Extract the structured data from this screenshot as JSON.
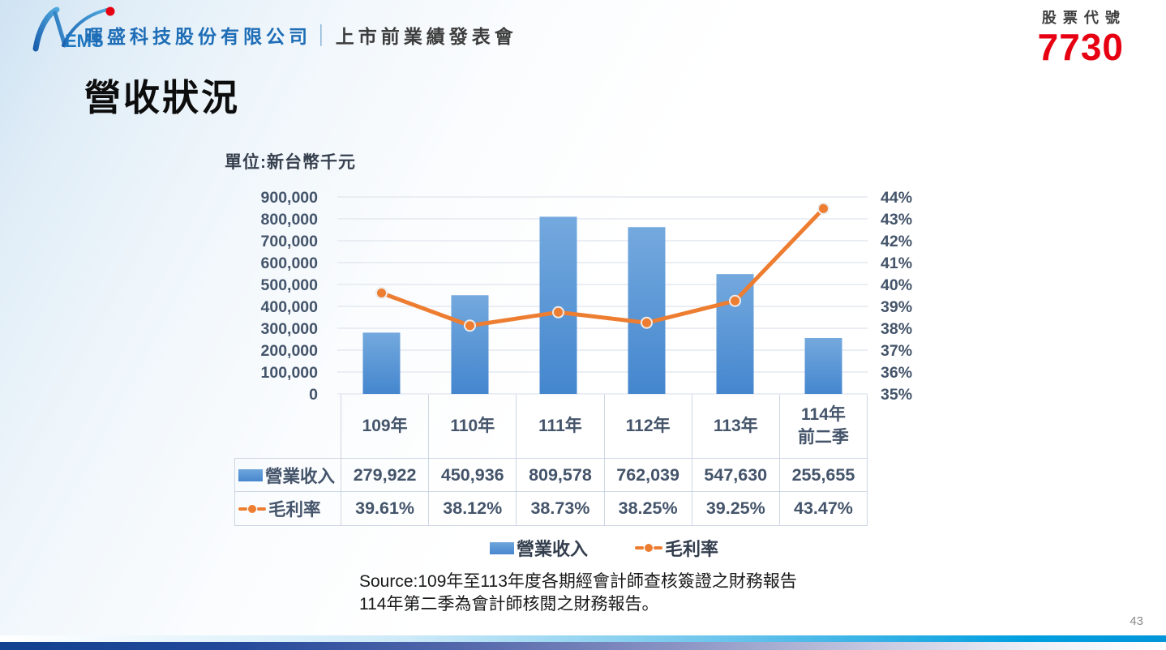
{
  "header": {
    "logo_text": "EMS",
    "company": "暉盛科技股份有限公司",
    "separator": "│",
    "event": "上市前業績發表會",
    "stock_label": "股票代號",
    "stock_code": "7730"
  },
  "title": "營收狀況",
  "unit_label": "單位:新台幣千元",
  "chart_data": {
    "type": "bar",
    "subtype": "bar+line-combo",
    "categories": [
      "109年",
      "110年",
      "111年",
      "112年",
      "113年",
      "114年\n前二季"
    ],
    "series": [
      {
        "name": "營業收入",
        "type": "bar",
        "axis": "left",
        "color": "#5b9bd5",
        "values": [
          279922,
          450936,
          809578,
          762039,
          547630,
          255655
        ]
      },
      {
        "name": "毛利率",
        "type": "line",
        "axis": "right",
        "color": "#ed7d31",
        "values": [
          39.61,
          38.12,
          38.73,
          38.25,
          39.25,
          43.47
        ]
      }
    ],
    "left_axis": {
      "min": 0,
      "max": 900000,
      "step": 100000,
      "tick_labels": [
        "0",
        "100,000",
        "200,000",
        "300,000",
        "400,000",
        "500,000",
        "600,000",
        "700,000",
        "800,000",
        "900,000"
      ]
    },
    "right_axis": {
      "min": 35,
      "max": 44,
      "step": 1,
      "tick_labels": [
        "35%",
        "36%",
        "37%",
        "38%",
        "39%",
        "40%",
        "41%",
        "42%",
        "43%",
        "44%"
      ]
    },
    "grid": true,
    "legend_position": "bottom",
    "legend": [
      "營業收入",
      "毛利率"
    ],
    "table": {
      "row_labels": [
        "營業收入",
        "毛利率"
      ],
      "rows": [
        [
          "279,922",
          "450,936",
          "809,578",
          "762,039",
          "547,630",
          "255,655"
        ],
        [
          "39.61%",
          "38.12%",
          "38.73%",
          "38.25%",
          "39.25%",
          "43.47%"
        ]
      ]
    }
  },
  "source": {
    "line1": "Source:109年至113年度各期經會計師查核簽證之財務報告",
    "line2": "114年第二季為會計師核閱之財務報告。"
  },
  "page_number": "43",
  "colors": {
    "bar": "#5b9bd5",
    "line": "#ed7d31",
    "accent_red": "#e60012",
    "brand_blue": "#1e6db6",
    "axis_text": "#44546a"
  }
}
